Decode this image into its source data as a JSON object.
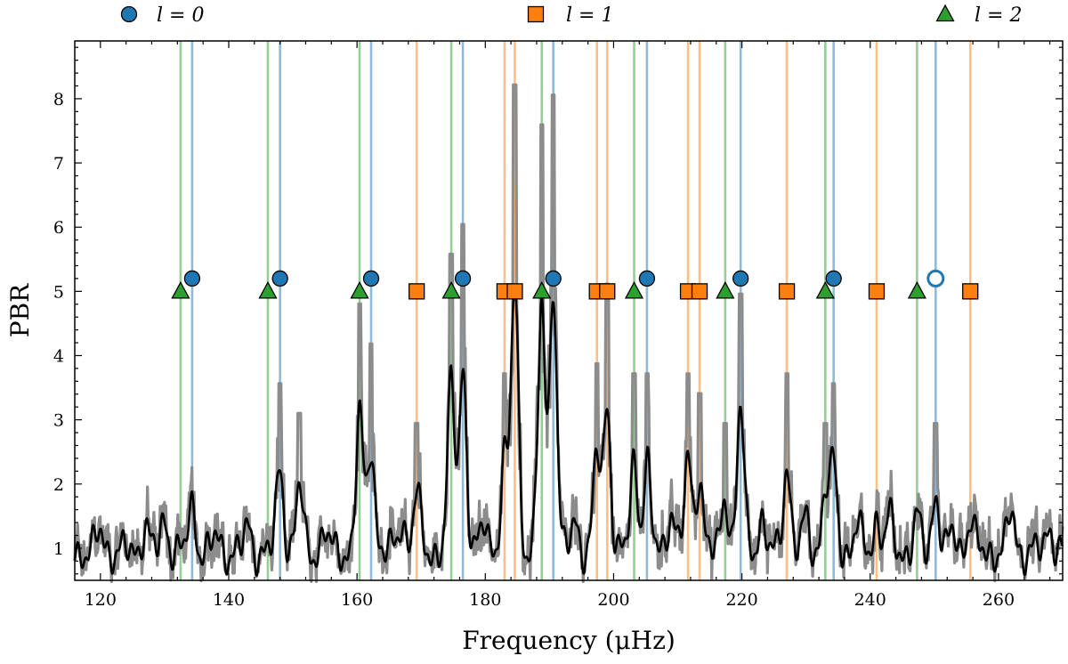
{
  "chart_data": {
    "type": "line",
    "xlabel": "Frequency (μHz)",
    "ylabel": "PBR",
    "xlim": [
      116,
      270
    ],
    "ylim": [
      0.5,
      8.9
    ],
    "x_ticks": [
      120,
      140,
      160,
      180,
      200,
      220,
      240,
      260
    ],
    "y_ticks": [
      1,
      2,
      3,
      4,
      5,
      6,
      7,
      8
    ],
    "grid": false,
    "legend_placement": "top, above plot",
    "legend": [
      {
        "label": "l = 0",
        "marker": "circle",
        "color": "#1f77b4"
      },
      {
        "label": "l = 1",
        "marker": "square",
        "color": "#ff7f0e"
      },
      {
        "label": "l = 2",
        "marker": "triangle",
        "color": "#2ca02c"
      }
    ],
    "colors": {
      "l0": "#1f77b4",
      "l1": "#ff7f0e",
      "l2": "#2ca02c",
      "raw": "#8c8c8c",
      "smooth": "#000000"
    },
    "modes": {
      "l0": {
        "y": 5.2,
        "freqs": [
          134.3,
          148.0,
          162.2,
          176.5,
          190.6,
          205.2,
          219.8,
          234.3,
          250.2
        ],
        "open": [
          false,
          false,
          false,
          false,
          false,
          false,
          false,
          false,
          true
        ]
      },
      "l1": {
        "y": 5.0,
        "freqs": [
          169.3,
          183.0,
          184.6,
          197.4,
          199.0,
          211.6,
          213.4,
          227.0,
          241.0,
          255.6
        ]
      },
      "l2": {
        "y": 5.0,
        "freqs": [
          132.5,
          146.1,
          160.4,
          174.7,
          188.8,
          203.2,
          217.4,
          233.0,
          247.3
        ]
      }
    },
    "peaks": [
      [
        120,
        1.3
      ],
      [
        127,
        1.4
      ],
      [
        130,
        1.5
      ],
      [
        134.3,
        1.7
      ],
      [
        138,
        1.2
      ],
      [
        143,
        1.35
      ],
      [
        148,
        2.3
      ],
      [
        151,
        2.0
      ],
      [
        155,
        1.3
      ],
      [
        160.4,
        3.1
      ],
      [
        162.2,
        2.7
      ],
      [
        167,
        1.5
      ],
      [
        169.3,
        1.9
      ],
      [
        174.7,
        3.6
      ],
      [
        176.5,
        3.9
      ],
      [
        180,
        1.5
      ],
      [
        183,
        2.4
      ],
      [
        184.6,
        5.3
      ],
      [
        188.8,
        4.9
      ],
      [
        190.6,
        5.2
      ],
      [
        194,
        1.5
      ],
      [
        197.4,
        2.5
      ],
      [
        199.0,
        3.3
      ],
      [
        203.2,
        2.4
      ],
      [
        205.2,
        2.4
      ],
      [
        209,
        1.7
      ],
      [
        211.6,
        2.4
      ],
      [
        213.4,
        2.2
      ],
      [
        217.4,
        1.9
      ],
      [
        219.8,
        3.2
      ],
      [
        223,
        1.5
      ],
      [
        227.0,
        2.4
      ],
      [
        230,
        1.5
      ],
      [
        233.0,
        1.9
      ],
      [
        234.3,
        2.3
      ],
      [
        238,
        1.4
      ],
      [
        241.0,
        1.5
      ],
      [
        243,
        1.5
      ],
      [
        247.3,
        1.5
      ],
      [
        250.2,
        1.9
      ],
      [
        253,
        1.3
      ],
      [
        255.6,
        1.5
      ],
      [
        262,
        1.6
      ],
      [
        268,
        1.4
      ]
    ]
  }
}
